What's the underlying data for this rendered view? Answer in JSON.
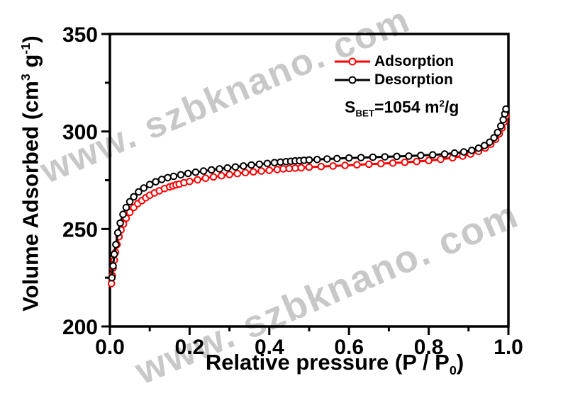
{
  "watermark": {
    "text": "www. szbknano. com",
    "color": "#c8c8c8"
  },
  "annotation": {
    "s_label": "S",
    "s_sub": "BET",
    "value": "=1054 m",
    "value_sup": "2",
    "value_post": "/g"
  },
  "ylabel_parts": {
    "pre": "Volume Adsorbed (cm",
    "sup1": "3",
    "mid": " g",
    "sup2": "-1",
    "post": ")"
  },
  "xlabel_parts": {
    "pre": "Relative pressure (P / P",
    "sub": "0",
    "post": ")"
  },
  "chart_data": {
    "type": "line",
    "title": "",
    "xlabel": "Relative pressure (P / P0)",
    "ylabel": "Volume Adsorbed (cm3 g-1)",
    "xlim": [
      0,
      1
    ],
    "ylim": [
      200,
      350
    ],
    "grid": false,
    "legend_position": "upper right inside",
    "annotation_text": "S_BET=1054 m2/g",
    "x_major_ticks": [
      0.0,
      0.2,
      0.4,
      0.6,
      0.8,
      1.0
    ],
    "x_tick_labels": [
      "0.0",
      "0.2",
      "0.4",
      "0.6",
      "0.8",
      "1.0"
    ],
    "x_minor_ticks": [
      0.1,
      0.3,
      0.5,
      0.7,
      0.9
    ],
    "y_major_ticks": [
      200,
      250,
      300,
      350
    ],
    "y_tick_labels": [
      "200",
      "250",
      "300",
      "350"
    ],
    "y_minor_ticks": [
      225,
      275,
      325
    ],
    "series": [
      {
        "name": "Adsorption",
        "color": "#ff0000",
        "marker": "open-circle",
        "points": [
          [
            0.004,
            222
          ],
          [
            0.006,
            226
          ],
          [
            0.008,
            230
          ],
          [
            0.011,
            234
          ],
          [
            0.014,
            238
          ],
          [
            0.018,
            242
          ],
          [
            0.023,
            246
          ],
          [
            0.028,
            249.5
          ],
          [
            0.034,
            252.5
          ],
          [
            0.041,
            255.5
          ],
          [
            0.05,
            258.5
          ],
          [
            0.06,
            261
          ],
          [
            0.07,
            263
          ],
          [
            0.08,
            264.5
          ],
          [
            0.09,
            266
          ],
          [
            0.1,
            267.3
          ],
          [
            0.112,
            268.5
          ],
          [
            0.124,
            269.6
          ],
          [
            0.137,
            270.7
          ],
          [
            0.15,
            271.6
          ],
          [
            0.158,
            272.1
          ],
          [
            0.166,
            272.6
          ],
          [
            0.174,
            273.0
          ],
          [
            0.186,
            273.7
          ],
          [
            0.2,
            274.4
          ],
          [
            0.22,
            275.2
          ],
          [
            0.24,
            276.0
          ],
          [
            0.26,
            276.7
          ],
          [
            0.28,
            277.3
          ],
          [
            0.3,
            277.9
          ],
          [
            0.32,
            278.4
          ],
          [
            0.34,
            278.9
          ],
          [
            0.36,
            279.3
          ],
          [
            0.38,
            279.7
          ],
          [
            0.4,
            280.1
          ],
          [
            0.42,
            280.5
          ],
          [
            0.435,
            280.8
          ],
          [
            0.45,
            281.0
          ],
          [
            0.465,
            281.2
          ],
          [
            0.48,
            281.4
          ],
          [
            0.5,
            281.7
          ],
          [
            0.53,
            282.0
          ],
          [
            0.56,
            282.3
          ],
          [
            0.59,
            282.6
          ],
          [
            0.62,
            282.9
          ],
          [
            0.65,
            283.2
          ],
          [
            0.68,
            283.5
          ],
          [
            0.71,
            283.8
          ],
          [
            0.74,
            284.2
          ],
          [
            0.77,
            284.6
          ],
          [
            0.8,
            285.1
          ],
          [
            0.83,
            285.7
          ],
          [
            0.86,
            286.5
          ],
          [
            0.885,
            287.4
          ],
          [
            0.905,
            288.4
          ],
          [
            0.925,
            289.8
          ],
          [
            0.942,
            291.5
          ],
          [
            0.956,
            293.5
          ],
          [
            0.968,
            296.0
          ],
          [
            0.977,
            298.8
          ],
          [
            0.984,
            301.8
          ],
          [
            0.99,
            305.0
          ],
          [
            0.994,
            308.0
          ]
        ]
      },
      {
        "name": "Desorption",
        "color": "#000000",
        "marker": "open-circle",
        "points": [
          [
            0.005,
            225
          ],
          [
            0.008,
            231
          ],
          [
            0.011,
            237
          ],
          [
            0.015,
            242
          ],
          [
            0.02,
            248
          ],
          [
            0.026,
            253
          ],
          [
            0.033,
            257.5
          ],
          [
            0.041,
            261
          ],
          [
            0.05,
            264
          ],
          [
            0.06,
            266.5
          ],
          [
            0.072,
            269
          ],
          [
            0.085,
            271
          ],
          [
            0.1,
            272.8
          ],
          [
            0.115,
            274.2
          ],
          [
            0.13,
            275.4
          ],
          [
            0.145,
            276.3
          ],
          [
            0.16,
            277.0
          ],
          [
            0.178,
            277.8
          ],
          [
            0.196,
            278.5
          ],
          [
            0.215,
            279.1
          ],
          [
            0.235,
            279.7
          ],
          [
            0.255,
            280.3
          ],
          [
            0.275,
            280.8
          ],
          [
            0.295,
            281.3
          ],
          [
            0.315,
            281.8
          ],
          [
            0.335,
            282.3
          ],
          [
            0.355,
            282.8
          ],
          [
            0.375,
            283.2
          ],
          [
            0.395,
            283.6
          ],
          [
            0.413,
            284.0
          ],
          [
            0.428,
            284.3
          ],
          [
            0.442,
            284.5
          ],
          [
            0.454,
            284.7
          ],
          [
            0.465,
            284.9
          ],
          [
            0.476,
            285.0
          ],
          [
            0.487,
            285.2
          ],
          [
            0.5,
            285.4
          ],
          [
            0.52,
            285.6
          ],
          [
            0.545,
            285.9
          ],
          [
            0.57,
            286.1
          ],
          [
            0.6,
            286.4
          ],
          [
            0.63,
            286.6
          ],
          [
            0.66,
            286.8
          ],
          [
            0.69,
            287.0
          ],
          [
            0.72,
            287.2
          ],
          [
            0.75,
            287.4
          ],
          [
            0.78,
            287.7
          ],
          [
            0.81,
            288.0
          ],
          [
            0.84,
            288.4
          ],
          [
            0.865,
            288.9
          ],
          [
            0.888,
            289.5
          ],
          [
            0.908,
            290.3
          ],
          [
            0.925,
            291.4
          ],
          [
            0.94,
            292.8
          ],
          [
            0.953,
            294.5
          ],
          [
            0.964,
            296.8
          ],
          [
            0.973,
            299.5
          ],
          [
            0.981,
            302.8
          ],
          [
            0.987,
            306.0
          ],
          [
            0.991,
            309.0
          ],
          [
            0.994,
            311.5
          ]
        ]
      }
    ]
  }
}
